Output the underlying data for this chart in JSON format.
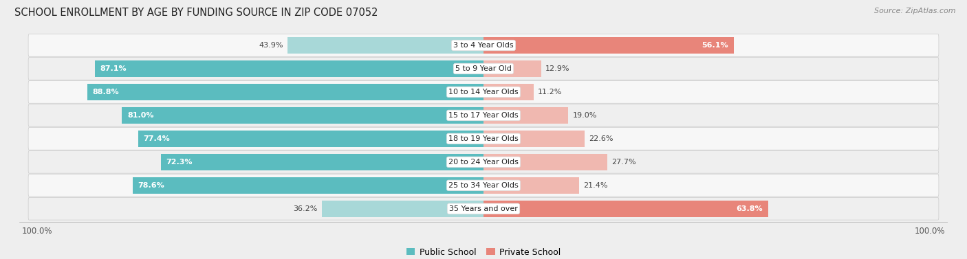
{
  "title": "SCHOOL ENROLLMENT BY AGE BY FUNDING SOURCE IN ZIP CODE 07052",
  "source": "Source: ZipAtlas.com",
  "categories": [
    "3 to 4 Year Olds",
    "5 to 9 Year Old",
    "10 to 14 Year Olds",
    "15 to 17 Year Olds",
    "18 to 19 Year Olds",
    "20 to 24 Year Olds",
    "25 to 34 Year Olds",
    "35 Years and over"
  ],
  "public_pct": [
    43.9,
    87.1,
    88.8,
    81.0,
    77.4,
    72.3,
    78.6,
    36.2
  ],
  "private_pct": [
    56.1,
    12.9,
    11.2,
    19.0,
    22.6,
    27.7,
    21.4,
    63.8
  ],
  "public_color": "#5bbcbf",
  "private_color": "#e8857a",
  "public_color_light": "#a8d8d8",
  "private_color_light": "#f0b8b0",
  "bg_color": "#eeeeee",
  "row_colors": [
    "#f7f7f7",
    "#efefef"
  ],
  "title_fontsize": 10.5,
  "source_fontsize": 8,
  "bar_label_fontsize": 8,
  "category_fontsize": 8,
  "legend_fontsize": 9,
  "axis_label_fontsize": 8.5
}
